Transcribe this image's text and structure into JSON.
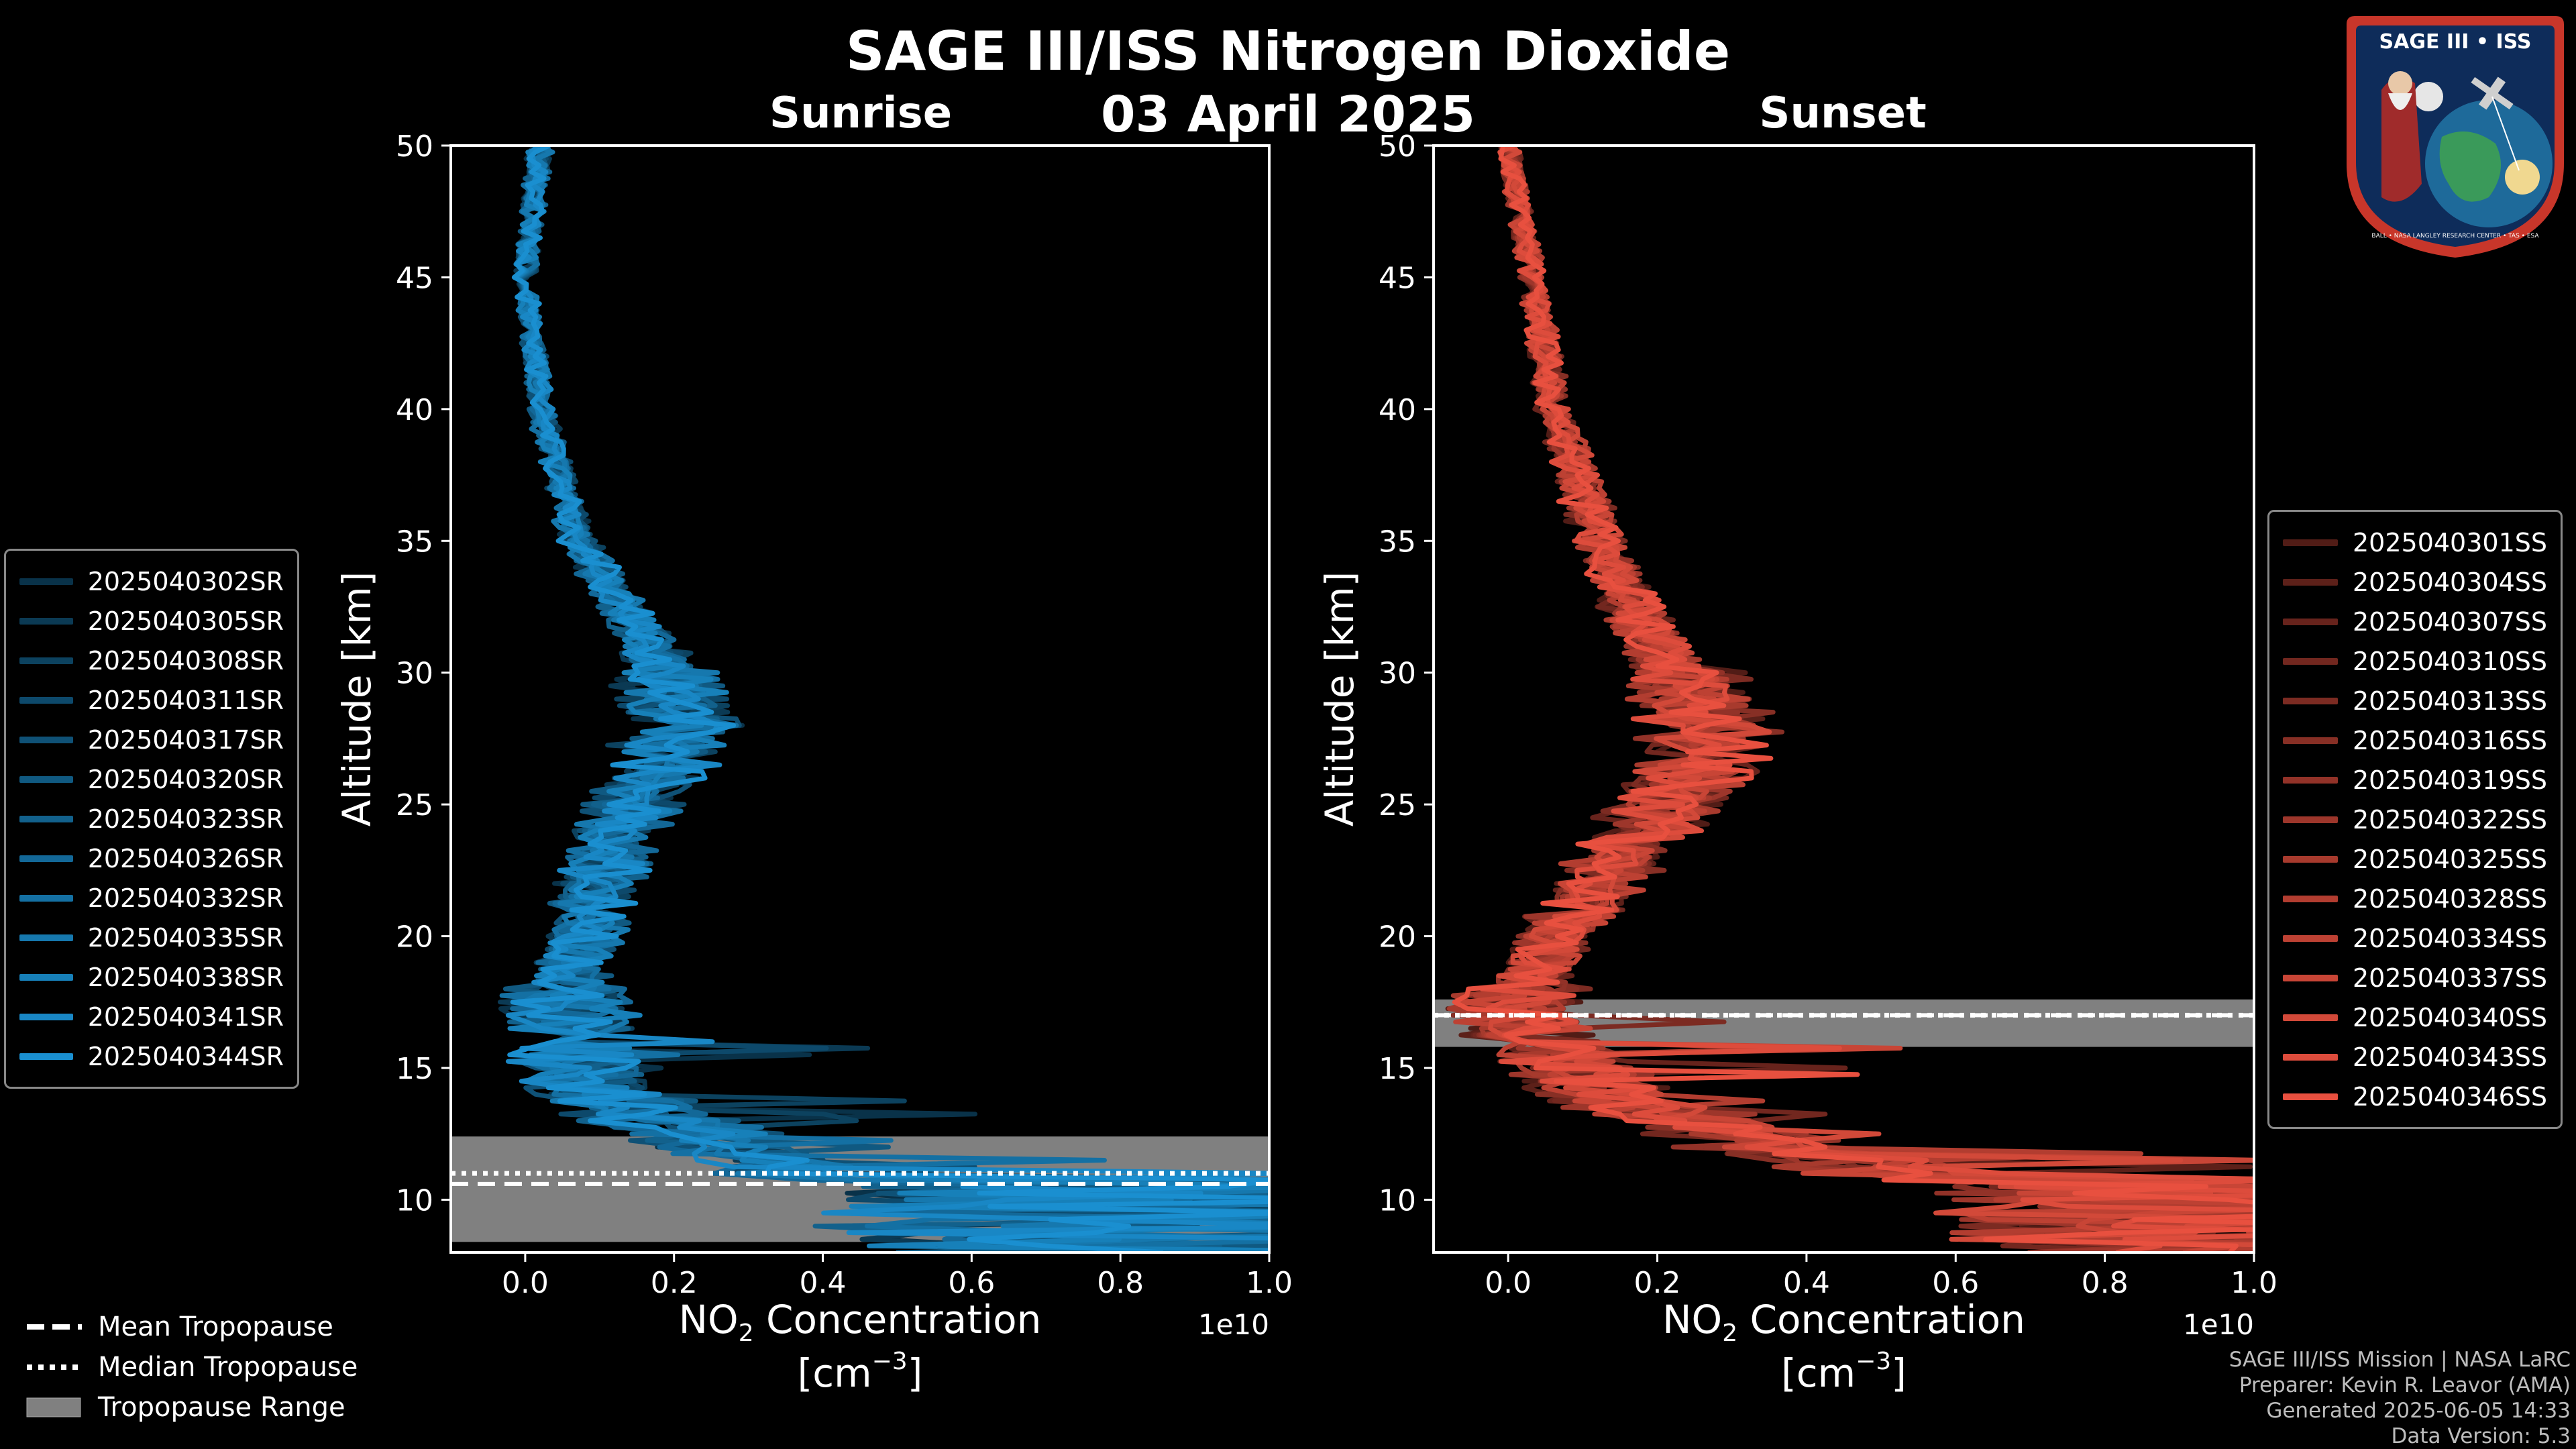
{
  "title": "SAGE III/ISS Nitrogen Dioxide",
  "date": "03 April 2025",
  "logo": {
    "text": "SAGE III • ISS",
    "ring_text": "BALL • NASA LANGLEY RESEARCH CENTER • TAS • ESA"
  },
  "tropopause_legend": {
    "mean": "Mean Tropopause",
    "median": "Median Tropopause",
    "range": "Tropopause Range"
  },
  "footer": [
    "SAGE III/ISS Mission | NASA LaRC",
    "Preparer: Kevin R. Leavor (AMA)",
    "Generated 2025-06-05 14:33",
    "Data Version: 5.3"
  ],
  "colors": {
    "sunrise": "#1a8fd0",
    "sunset": "#e8503f",
    "tropopause_range": "#808080"
  },
  "chart_data": [
    {
      "type": "line",
      "title": "Sunrise",
      "xlabel_main": "NO",
      "xlabel_sub": "2",
      "xlabel_tail": " Concentration",
      "xlabel_unit": "[cm",
      "xlabel_unit_exp": "−3",
      "xlabel_unit_close": "]",
      "offset_label": "1e10",
      "ylabel": "Altitude [km]",
      "xlim": [
        -0.1,
        1.0
      ],
      "ylim": [
        8,
        50
      ],
      "xticks": [
        0.0,
        0.2,
        0.4,
        0.6,
        0.8,
        1.0
      ],
      "xtick_labels": [
        "0.0",
        "0.2",
        "0.4",
        "0.6",
        "0.8",
        "1.0"
      ],
      "yticks": [
        10,
        15,
        20,
        25,
        30,
        35,
        40,
        45,
        50
      ],
      "legend_position": "left",
      "series_names": [
        "2025040302SR",
        "2025040305SR",
        "2025040308SR",
        "2025040311SR",
        "2025040317SR",
        "2025040320SR",
        "2025040323SR",
        "2025040326SR",
        "2025040332SR",
        "2025040335SR",
        "2025040338SR",
        "2025040341SR",
        "2025040344SR"
      ],
      "tropopause": {
        "mean": 10.6,
        "median": 11.0,
        "range": [
          8.4,
          12.4
        ]
      },
      "profile_shape": [
        [
          50,
          0.02
        ],
        [
          45,
          0.0
        ],
        [
          40,
          0.02
        ],
        [
          35,
          0.07
        ],
        [
          32,
          0.14
        ],
        [
          30,
          0.19
        ],
        [
          28,
          0.2
        ],
        [
          26,
          0.17
        ],
        [
          24,
          0.12
        ],
        [
          22,
          0.1
        ],
        [
          20,
          0.08
        ],
        [
          18,
          0.05
        ],
        [
          16,
          0.06
        ],
        [
          14,
          0.1
        ],
        [
          12,
          0.25
        ],
        [
          10,
          0.45
        ],
        [
          8,
          0.5
        ]
      ]
    },
    {
      "type": "line",
      "title": "Sunset",
      "xlabel_main": "NO",
      "xlabel_sub": "2",
      "xlabel_tail": " Concentration",
      "xlabel_unit": "[cm",
      "xlabel_unit_exp": "−3",
      "xlabel_unit_close": "]",
      "offset_label": "1e10",
      "ylabel": "Altitude [km]",
      "xlim": [
        -0.1,
        1.0
      ],
      "ylim": [
        8,
        50
      ],
      "xticks": [
        0.0,
        0.2,
        0.4,
        0.6,
        0.8,
        1.0
      ],
      "xtick_labels": [
        "0.0",
        "0.2",
        "0.4",
        "0.6",
        "0.8",
        "1.0"
      ],
      "yticks": [
        10,
        15,
        20,
        25,
        30,
        35,
        40,
        45,
        50
      ],
      "legend_position": "right",
      "series_names": [
        "2025040301SS",
        "2025040304SS",
        "2025040307SS",
        "2025040310SS",
        "2025040313SS",
        "2025040316SS",
        "2025040319SS",
        "2025040322SS",
        "2025040325SS",
        "2025040328SS",
        "2025040334SS",
        "2025040337SS",
        "2025040340SS",
        "2025040343SS",
        "2025040346SS"
      ],
      "tropopause": {
        "mean": 17.0,
        "median": 17.0,
        "range": [
          15.8,
          17.6
        ]
      },
      "profile_shape": [
        [
          50,
          0.0
        ],
        [
          45,
          0.03
        ],
        [
          40,
          0.06
        ],
        [
          35,
          0.12
        ],
        [
          32,
          0.17
        ],
        [
          30,
          0.22
        ],
        [
          28,
          0.26
        ],
        [
          26,
          0.24
        ],
        [
          24,
          0.18
        ],
        [
          22,
          0.12
        ],
        [
          20,
          0.06
        ],
        [
          18,
          0.02
        ],
        [
          17,
          0.0
        ],
        [
          16,
          0.04
        ],
        [
          14,
          0.12
        ],
        [
          12,
          0.35
        ],
        [
          10,
          0.7
        ],
        [
          8,
          0.8
        ]
      ]
    }
  ]
}
